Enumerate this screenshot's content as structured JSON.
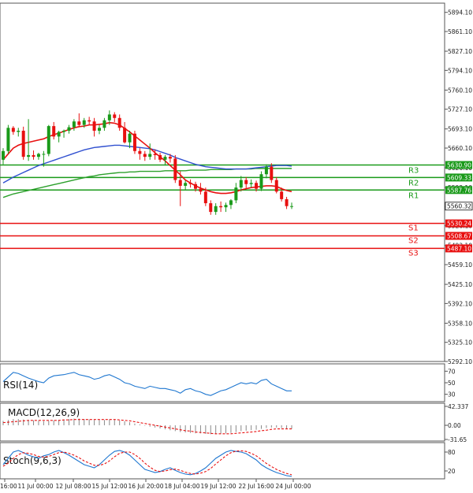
{
  "chart_data": {
    "type": "candlestick",
    "main": {
      "y_ticks": [
        "5894.10",
        "5861.10",
        "5827.10",
        "5794.10",
        "5760.10",
        "5727.10",
        "5693.10",
        "5660.10",
        "5626.10",
        "5592.10",
        "5559.10",
        "5526.10",
        "5492.10",
        "5459.10",
        "5425.10",
        "5392.10",
        "5358.10",
        "5325.10",
        "5292.10"
      ],
      "ylim": [
        5292.1,
        5910.0
      ],
      "current_price": "5560.32",
      "levels": [
        {
          "name": "R3",
          "value": 5630.9,
          "label": "5630.90",
          "color": "#1a9a1a"
        },
        {
          "name": "R2",
          "value": 5609.33,
          "label": "5609.33",
          "color": "#1a9a1a"
        },
        {
          "name": "R1",
          "value": 5587.76,
          "label": "5587.76",
          "color": "#1a9a1a"
        },
        {
          "name": "S1",
          "value": 5530.24,
          "label": "5530.24",
          "color": "#e81010"
        },
        {
          "name": "S2",
          "value": 5508.67,
          "label": "5508.67",
          "color": "#e81010"
        },
        {
          "name": "S3",
          "value": 5487.1,
          "label": "5487.10",
          "color": "#e81010"
        }
      ],
      "candles": [
        [
          5640,
          5660,
          5632,
          5655
        ],
        [
          5655,
          5700,
          5650,
          5695
        ],
        [
          5695,
          5698,
          5683,
          5688
        ],
        [
          5688,
          5695,
          5680,
          5690
        ],
        [
          5690,
          5697,
          5640,
          5645
        ],
        [
          5645,
          5710,
          5638,
          5648
        ],
        [
          5648,
          5656,
          5640,
          5645
        ],
        [
          5645,
          5652,
          5640,
          5650
        ],
        [
          5650,
          5655,
          5628,
          5650
        ],
        [
          5650,
          5700,
          5646,
          5698
        ],
        [
          5698,
          5705,
          5675,
          5680
        ],
        [
          5680,
          5690,
          5670,
          5688
        ],
        [
          5688,
          5692,
          5678,
          5690
        ],
        [
          5690,
          5700,
          5685,
          5696
        ],
        [
          5696,
          5710,
          5690,
          5706
        ],
        [
          5706,
          5720,
          5696,
          5700
        ],
        [
          5700,
          5712,
          5695,
          5708
        ],
        [
          5708,
          5714,
          5700,
          5706
        ],
        [
          5706,
          5712,
          5680,
          5690
        ],
        [
          5690,
          5700,
          5684,
          5695
        ],
        [
          5695,
          5712,
          5690,
          5708
        ],
        [
          5708,
          5725,
          5700,
          5718
        ],
        [
          5718,
          5722,
          5705,
          5712
        ],
        [
          5712,
          5718,
          5690,
          5695
        ],
        [
          5695,
          5705,
          5668,
          5670
        ],
        [
          5670,
          5690,
          5660,
          5685
        ],
        [
          5685,
          5690,
          5650,
          5655
        ],
        [
          5655,
          5660,
          5640,
          5650
        ],
        [
          5650,
          5655,
          5638,
          5645
        ],
        [
          5645,
          5668,
          5640,
          5650
        ],
        [
          5650,
          5658,
          5640,
          5648
        ],
        [
          5648,
          5652,
          5636,
          5640
        ],
        [
          5640,
          5648,
          5630,
          5645
        ],
        [
          5645,
          5650,
          5635,
          5642
        ],
        [
          5642,
          5648,
          5600,
          5605
        ],
        [
          5605,
          5620,
          5560,
          5595
        ],
        [
          5595,
          5604,
          5588,
          5600
        ],
        [
          5600,
          5606,
          5592,
          5598
        ],
        [
          5598,
          5602,
          5585,
          5590
        ],
        [
          5590,
          5600,
          5580,
          5585
        ],
        [
          5585,
          5592,
          5560,
          5565
        ],
        [
          5565,
          5570,
          5545,
          5550
        ],
        [
          5550,
          5565,
          5545,
          5560
        ],
        [
          5560,
          5568,
          5550,
          5558
        ],
        [
          5558,
          5566,
          5550,
          5562
        ],
        [
          5562,
          5572,
          5555,
          5570
        ],
        [
          5570,
          5600,
          5565,
          5592
        ],
        [
          5592,
          5612,
          5585,
          5605
        ],
        [
          5605,
          5610,
          5590,
          5598
        ],
        [
          5598,
          5606,
          5592,
          5600
        ],
        [
          5600,
          5604,
          5585,
          5590
        ],
        [
          5590,
          5620,
          5586,
          5615
        ],
        [
          5615,
          5632,
          5608,
          5628
        ],
        [
          5628,
          5634,
          5600,
          5605
        ],
        [
          5605,
          5610,
          5582,
          5585
        ],
        [
          5585,
          5592,
          5568,
          5572
        ],
        [
          5572,
          5576,
          5555,
          5560
        ],
        [
          5560,
          5566,
          5555,
          5560
        ]
      ],
      "ma_short": [
        5640,
        5650,
        5660,
        5665,
        5668,
        5670,
        5672,
        5674,
        5676,
        5680,
        5683,
        5686,
        5689,
        5692,
        5695,
        5697,
        5698,
        5700,
        5700,
        5701,
        5702,
        5704,
        5703,
        5700,
        5694,
        5688,
        5681,
        5674,
        5667,
        5660,
        5652,
        5645,
        5638,
        5630,
        5622,
        5614,
        5605,
        5600,
        5595,
        5591,
        5588,
        5585,
        5583,
        5582,
        5582,
        5583,
        5585,
        5588,
        5590,
        5592,
        5593,
        5594,
        5595,
        5595,
        5594,
        5590,
        5587,
        5585
      ],
      "ma_mid": [
        5600,
        5605,
        5610,
        5614,
        5618,
        5622,
        5626,
        5630,
        5633,
        5636,
        5639,
        5642,
        5645,
        5648,
        5651,
        5654,
        5657,
        5659,
        5661,
        5662,
        5663,
        5664,
        5665,
        5665,
        5664,
        5663,
        5662,
        5661,
        5660,
        5659,
        5657,
        5654,
        5651,
        5648,
        5644,
        5641,
        5638,
        5635,
        5632,
        5630,
        5628,
        5627,
        5626,
        5625,
        5624,
        5624,
        5624,
        5624,
        5624,
        5625,
        5626,
        5627,
        5628,
        5629,
        5630,
        5630,
        5630,
        5629
      ],
      "ma_long": [
        5575,
        5578,
        5581,
        5583,
        5585,
        5587,
        5589,
        5591,
        5593,
        5595,
        5597,
        5599,
        5601,
        5603,
        5605,
        5607,
        5609,
        5611,
        5612,
        5614,
        5615,
        5616,
        5617,
        5618,
        5618,
        5619,
        5619,
        5620,
        5620,
        5620,
        5620,
        5620,
        5621,
        5621,
        5621,
        5621,
        5621,
        5622,
        5622,
        5622,
        5622,
        5623,
        5623,
        5623,
        5623,
        5623,
        5624,
        5624,
        5624,
        5624,
        5625,
        5625,
        5625,
        5625,
        5625,
        5625,
        5625,
        5625
      ]
    },
    "rsi": {
      "label": "RSI(14)",
      "y_ticks": [
        "70",
        "50",
        "30"
      ],
      "values": [
        52,
        60,
        68,
        66,
        62,
        58,
        55,
        52,
        50,
        58,
        62,
        63,
        64,
        66,
        68,
        64,
        62,
        60,
        56,
        58,
        62,
        64,
        60,
        56,
        50,
        48,
        44,
        42,
        40,
        44,
        42,
        40,
        40,
        38,
        36,
        32,
        38,
        40,
        36,
        34,
        30,
        28,
        32,
        36,
        38,
        42,
        46,
        50,
        48,
        50,
        48,
        54,
        56,
        48,
        44,
        40,
        36,
        36
      ]
    },
    "macd": {
      "label": "MACD(12,26,9)",
      "y_ticks": [
        "42.337",
        "0.00",
        "-31.65"
      ],
      "ylim": [
        -31.65,
        42.337
      ],
      "histogram": [
        10,
        12,
        14,
        14,
        13,
        12,
        11,
        10,
        9,
        10,
        11,
        12,
        13,
        14,
        15,
        15,
        14,
        13,
        12,
        12,
        12,
        13,
        12,
        11,
        9,
        7,
        4,
        2,
        -1,
        -3,
        -5,
        -7,
        -9,
        -11,
        -13,
        -15,
        -16,
        -17,
        -18,
        -18,
        -19,
        -20,
        -20,
        -19,
        -18,
        -17,
        -15,
        -13,
        -12,
        -11,
        -10,
        -8,
        -6,
        -5,
        -5,
        -6,
        -7,
        -8
      ],
      "signal": [
        6,
        7,
        8,
        9,
        10,
        11,
        11,
        11,
        11,
        11,
        11,
        11,
        12,
        12,
        13,
        13,
        13,
        13,
        13,
        13,
        13,
        13,
        13,
        12,
        11,
        10,
        8,
        6,
        4,
        2,
        0,
        -2,
        -4,
        -6,
        -8,
        -10,
        -12,
        -13,
        -15,
        -16,
        -17,
        -18,
        -19,
        -19,
        -19,
        -19,
        -18,
        -17,
        -16,
        -15,
        -14,
        -12,
        -11,
        -9,
        -8,
        -8,
        -8,
        -8
      ]
    },
    "stoch": {
      "label": "Stoch(9,6,3)",
      "y_ticks": [
        "80",
        "20"
      ],
      "k": [
        40,
        60,
        80,
        85,
        78,
        70,
        65,
        60,
        68,
        72,
        80,
        85,
        78,
        70,
        60,
        50,
        40,
        35,
        30,
        40,
        55,
        70,
        82,
        85,
        80,
        70,
        55,
        40,
        25,
        20,
        15,
        18,
        25,
        30,
        22,
        15,
        10,
        8,
        12,
        20,
        30,
        45,
        60,
        70,
        80,
        85,
        82,
        80,
        75,
        65,
        55,
        40,
        30,
        22,
        15,
        10,
        5,
        3
      ],
      "d": [
        35,
        45,
        60,
        72,
        78,
        76,
        72,
        66,
        64,
        66,
        72,
        78,
        80,
        76,
        70,
        62,
        52,
        45,
        38,
        38,
        42,
        52,
        65,
        76,
        80,
        80,
        72,
        60,
        45,
        32,
        22,
        18,
        20,
        24,
        26,
        22,
        16,
        12,
        10,
        13,
        18,
        28,
        42,
        55,
        68,
        78,
        83,
        84,
        82,
        76,
        68,
        56,
        44,
        34,
        25,
        18,
        12,
        8
      ]
    },
    "x_ticks": [
      "16:00",
      "11 Jul 00:00",
      "12 Jul 08:00",
      "15 Jul 12:00",
      "16 Jul 20:00",
      "18 Jul 04:00",
      "19 Jul 12:00",
      "22 Jul 16:00",
      "24 Jul 00:00"
    ],
    "colors": {
      "bull": "#1a9a1a",
      "bear": "#e81010",
      "ma_short": "#e81010",
      "ma_mid": "#2ca02c",
      "ma_long": "#3050d0",
      "rsi": "#1f77d0",
      "macd_signal": "#e81010",
      "stoch_k": "#1f77d0",
      "stoch_d": "#e81010"
    }
  }
}
